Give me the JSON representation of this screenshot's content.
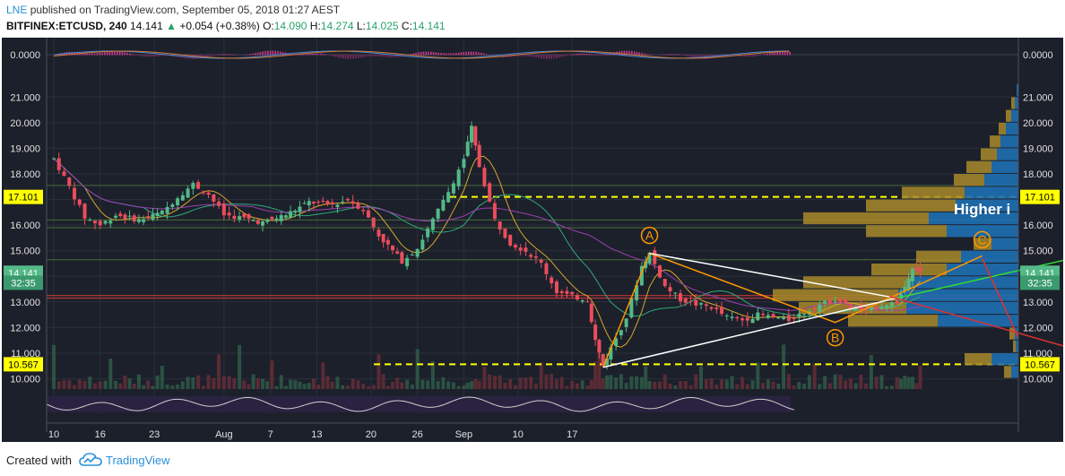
{
  "header": {
    "username": "LNE",
    "published_text": "published on TradingView.com, September 05, 2018 01:27 AEST",
    "symbol": "BITFINEX:ETCUSD, 240",
    "last": "14.141",
    "change_arrow": "▲",
    "change": "+0.054 (+0.38%)",
    "o_label": "O:",
    "o_value": "14.090",
    "h_label": "H:",
    "h_value": "14.274",
    "l_label": "L:",
    "l_value": "14.025",
    "c_label": "C:",
    "c_value": "14.141"
  },
  "footer": {
    "created_text": "Created with",
    "brand": "TradingView",
    "logo_icon": "tradingview-cloud-logo-icon"
  },
  "colors": {
    "background": "#1c202b",
    "up": "#53b987",
    "down": "#eb4d5c",
    "accent_yellow": "#ffff00",
    "pattern_orange": "#ff9800",
    "brand_blue": "#2b90d9"
  },
  "chart_data": {
    "type": "candlestick",
    "symbol": "BITFINEX:ETCUSD",
    "timeframe": "240",
    "ylim": [
      9.6,
      21.5
    ],
    "y_ticks": [
      "21.000",
      "20.000",
      "19.000",
      "18.000",
      "17.000",
      "16.000",
      "15.000",
      "14.000",
      "13.000",
      "12.000",
      "11.000",
      "10.000"
    ],
    "x_ticks": [
      "10",
      "16",
      "23",
      "Aug",
      "7",
      "13",
      "20",
      "26",
      "Sep",
      "10",
      "17"
    ],
    "macd_axis_label": "0.0000",
    "price_labels": [
      {
        "text": "17.101",
        "value": 17.101,
        "style": "highlight"
      },
      {
        "text": "14.141",
        "value": 14.141,
        "style": "current"
      },
      {
        "text": "32:35",
        "value": 13.75,
        "style": "countdown"
      },
      {
        "text": "10.567",
        "value": 10.567,
        "style": "highlight"
      }
    ],
    "key_levels": [
      17.101,
      10.567
    ],
    "horizontal_lines": [
      17.55,
      16.2,
      15.9,
      14.65,
      13.25,
      13.15
    ],
    "price_path": [
      [
        0,
        18.6
      ],
      [
        2,
        17.5
      ],
      [
        4,
        16.3
      ],
      [
        6,
        16.0
      ],
      [
        8,
        16.4
      ],
      [
        11,
        16.2
      ],
      [
        14,
        16.5
      ],
      [
        16,
        17.1
      ],
      [
        18,
        17.6
      ],
      [
        20,
        17.2
      ],
      [
        22,
        16.4
      ],
      [
        24,
        16.3
      ],
      [
        27,
        16.1
      ],
      [
        30,
        16.4
      ],
      [
        33,
        16.9
      ],
      [
        36,
        16.8
      ],
      [
        38,
        17.0
      ],
      [
        40,
        16.6
      ],
      [
        42,
        15.6
      ],
      [
        45,
        14.6
      ],
      [
        47,
        15.1
      ],
      [
        49,
        16.2
      ],
      [
        51,
        17.3
      ],
      [
        53,
        18.6
      ],
      [
        54,
        19.8
      ],
      [
        55,
        18.3
      ],
      [
        57,
        16.2
      ],
      [
        59,
        15.3
      ],
      [
        61,
        15.0
      ],
      [
        63,
        14.5
      ],
      [
        65,
        13.4
      ],
      [
        67,
        13.2
      ],
      [
        69,
        13.1
      ],
      [
        70,
        11.5
      ],
      [
        71,
        10.5
      ],
      [
        72,
        11.2
      ],
      [
        74,
        12.4
      ],
      [
        76,
        14.4
      ],
      [
        77,
        14.9
      ],
      [
        79,
        13.6
      ],
      [
        81,
        13.1
      ],
      [
        83,
        12.9
      ],
      [
        85,
        12.8
      ],
      [
        87,
        12.4
      ],
      [
        89,
        12.3
      ],
      [
        91,
        12.5
      ],
      [
        93,
        12.4
      ],
      [
        95,
        12.3
      ],
      [
        97,
        12.6
      ],
      [
        99,
        12.9
      ],
      [
        101,
        13.1
      ],
      [
        103,
        12.8
      ],
      [
        105,
        12.6
      ],
      [
        107,
        12.9
      ],
      [
        109,
        13.0
      ],
      [
        110,
        13.6
      ],
      [
        111,
        14.4
      ],
      [
        112,
        14.141
      ]
    ],
    "volume_profile": [
      {
        "price": 21.25,
        "brown": 0,
        "blue": 2
      },
      {
        "price": 20.75,
        "brown": 4,
        "blue": 4
      },
      {
        "price": 20.25,
        "brown": 6,
        "blue": 8
      },
      {
        "price": 19.75,
        "brown": 8,
        "blue": 14
      },
      {
        "price": 19.25,
        "brown": 12,
        "blue": 20
      },
      {
        "price": 18.75,
        "brown": 18,
        "blue": 24
      },
      {
        "price": 18.25,
        "brown": 28,
        "blue": 30
      },
      {
        "price": 17.75,
        "brown": 34,
        "blue": 38
      },
      {
        "price": 17.25,
        "brown": 70,
        "blue": 60
      },
      {
        "price": 16.75,
        "brown": 100,
        "blue": 70
      },
      {
        "price": 16.25,
        "brown": 140,
        "blue": 100
      },
      {
        "price": 15.75,
        "brown": 90,
        "blue": 80
      },
      {
        "price": 15.25,
        "brown": 20,
        "blue": 30
      },
      {
        "price": 14.75,
        "brown": 50,
        "blue": 64
      },
      {
        "price": 14.25,
        "brown": 84,
        "blue": 80
      },
      {
        "price": 13.75,
        "brown": 120,
        "blue": 120
      },
      {
        "price": 13.25,
        "brown": 140,
        "blue": 134
      },
      {
        "price": 12.75,
        "brown": 120,
        "blue": 125
      },
      {
        "price": 12.25,
        "brown": 100,
        "blue": 90
      },
      {
        "price": 11.75,
        "brown": 6,
        "blue": 4
      },
      {
        "price": 11.25,
        "brown": 3,
        "blue": 3
      },
      {
        "price": 10.75,
        "brown": 30,
        "blue": 30
      },
      {
        "price": 10.25,
        "brown": 8,
        "blue": 8
      }
    ],
    "pattern_points": [
      {
        "label": "A",
        "day": 77,
        "price": 14.9
      },
      {
        "label": "B",
        "day": 101,
        "price": 12.2
      },
      {
        "label": "C",
        "day": 120,
        "price": 14.8
      }
    ],
    "annotation": "Higher i"
  }
}
